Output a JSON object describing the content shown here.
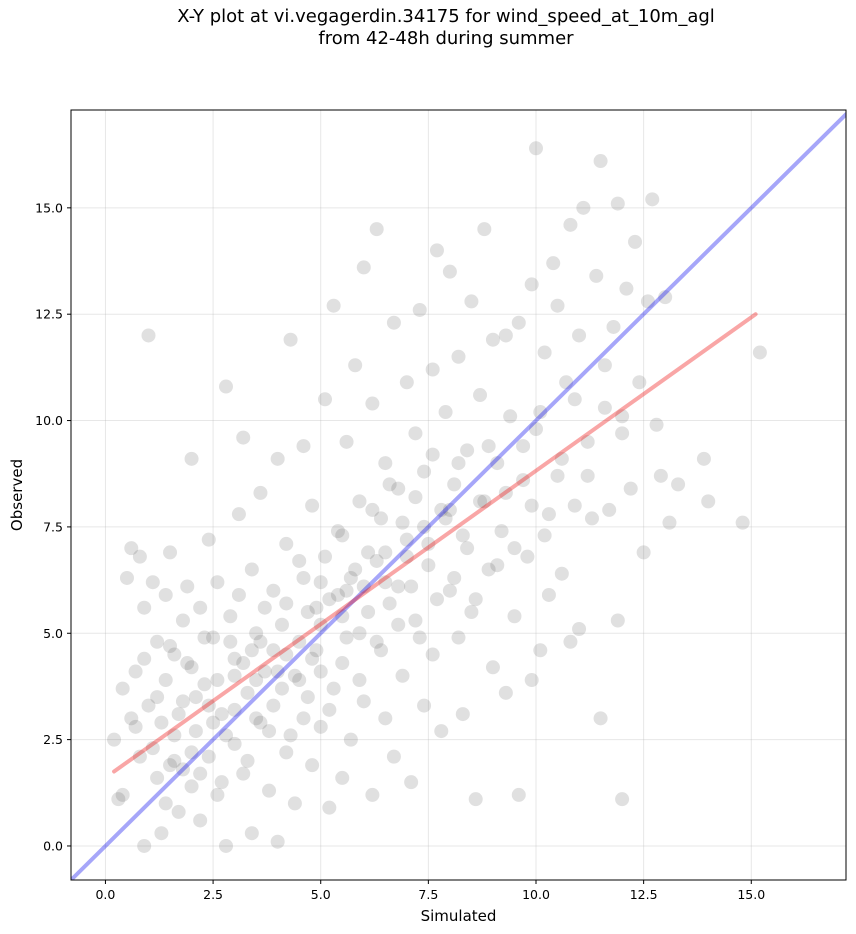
{
  "chart_data": {
    "type": "scatter",
    "title_lines": [
      "X-Y plot at vi.vegagerdin.34175 for wind_speed_at_10m_agl",
      "from 42-48h during summer"
    ],
    "xlabel": "Simulated",
    "ylabel": "Observed",
    "xlim": [
      -0.8,
      17.2
    ],
    "ylim": [
      -0.8,
      17.3
    ],
    "x_ticks": [
      0.0,
      2.5,
      5.0,
      7.5,
      10.0,
      12.5,
      15.0
    ],
    "x_tick_labels": [
      "0.0",
      "2.5",
      "5.0",
      "7.5",
      "10.0",
      "12.5",
      "15.0"
    ],
    "y_ticks": [
      0.0,
      2.5,
      5.0,
      7.5,
      10.0,
      12.5,
      15.0
    ],
    "y_tick_labels": [
      "0.0",
      "2.5",
      "5.0",
      "7.5",
      "10.0",
      "12.5",
      "15.0"
    ],
    "grid": true,
    "point_color": "#555555",
    "points": [
      [
        0.2,
        2.5
      ],
      [
        0.3,
        1.1
      ],
      [
        0.4,
        3.7
      ],
      [
        0.5,
        6.3
      ],
      [
        0.6,
        7.0
      ],
      [
        0.7,
        4.1
      ],
      [
        0.8,
        2.1
      ],
      [
        0.8,
        6.8
      ],
      [
        0.9,
        0.0
      ],
      [
        0.9,
        5.6
      ],
      [
        1.0,
        3.3
      ],
      [
        1.0,
        12.0
      ],
      [
        1.1,
        6.2
      ],
      [
        1.2,
        1.6
      ],
      [
        1.2,
        4.8
      ],
      [
        1.3,
        2.9
      ],
      [
        1.3,
        0.3
      ],
      [
        1.4,
        5.9
      ],
      [
        1.4,
        3.9
      ],
      [
        1.5,
        1.9
      ],
      [
        1.5,
        6.9
      ],
      [
        1.6,
        4.5
      ],
      [
        1.6,
        2.6
      ],
      [
        1.7,
        0.8
      ],
      [
        1.8,
        5.3
      ],
      [
        1.8,
        3.4
      ],
      [
        1.9,
        6.1
      ],
      [
        2.0,
        1.4
      ],
      [
        2.0,
        4.2
      ],
      [
        2.0,
        9.1
      ],
      [
        2.1,
        2.7
      ],
      [
        2.2,
        5.6
      ],
      [
        2.2,
        0.6
      ],
      [
        2.3,
        3.8
      ],
      [
        2.4,
        7.2
      ],
      [
        2.4,
        2.1
      ],
      [
        2.5,
        4.9
      ],
      [
        2.6,
        1.2
      ],
      [
        2.6,
        6.2
      ],
      [
        2.7,
        3.1
      ],
      [
        2.8,
        0.0
      ],
      [
        2.8,
        10.8
      ],
      [
        2.9,
        5.4
      ],
      [
        3.0,
        2.4
      ],
      [
        3.0,
        4.4
      ],
      [
        3.1,
        7.8
      ],
      [
        3.2,
        1.7
      ],
      [
        3.2,
        9.6
      ],
      [
        3.3,
        3.6
      ],
      [
        3.4,
        6.5
      ],
      [
        3.4,
        0.3
      ],
      [
        3.5,
        5.0
      ],
      [
        3.6,
        2.9
      ],
      [
        3.6,
        8.3
      ],
      [
        3.7,
        4.1
      ],
      [
        3.8,
        1.3
      ],
      [
        3.9,
        6.0
      ],
      [
        3.9,
        3.3
      ],
      [
        4.0,
        9.1
      ],
      [
        4.0,
        0.1
      ],
      [
        4.1,
        5.2
      ],
      [
        4.2,
        2.2
      ],
      [
        4.2,
        7.1
      ],
      [
        4.3,
        11.9
      ],
      [
        4.4,
        4.0
      ],
      [
        4.4,
        1.0
      ],
      [
        4.5,
        6.7
      ],
      [
        4.6,
        3.0
      ],
      [
        4.6,
        9.4
      ],
      [
        4.7,
        5.5
      ],
      [
        4.8,
        1.9
      ],
      [
        4.8,
        8.0
      ],
      [
        4.9,
        4.6
      ],
      [
        5.0,
        6.2
      ],
      [
        5.0,
        2.8
      ],
      [
        5.1,
        10.5
      ],
      [
        5.2,
        0.9
      ],
      [
        5.2,
        5.8
      ],
      [
        5.3,
        3.7
      ],
      [
        5.3,
        12.7
      ],
      [
        5.4,
        7.4
      ],
      [
        5.5,
        4.3
      ],
      [
        5.5,
        1.6
      ],
      [
        5.6,
        9.5
      ],
      [
        5.7,
        6.3
      ],
      [
        5.7,
        2.5
      ],
      [
        5.8,
        11.3
      ],
      [
        5.9,
        5.0
      ],
      [
        5.9,
        8.1
      ],
      [
        6.0,
        3.4
      ],
      [
        6.0,
        13.6
      ],
      [
        6.1,
        6.9
      ],
      [
        6.2,
        1.2
      ],
      [
        6.2,
        10.4
      ],
      [
        6.3,
        4.8
      ],
      [
        6.3,
        14.5
      ],
      [
        6.4,
        7.7
      ],
      [
        6.5,
        3.0
      ],
      [
        6.5,
        9.0
      ],
      [
        6.6,
        5.7
      ],
      [
        6.7,
        12.3
      ],
      [
        6.7,
        2.1
      ],
      [
        6.8,
        8.4
      ],
      [
        6.8,
        6.1
      ],
      [
        6.9,
        4.0
      ],
      [
        7.0,
        10.9
      ],
      [
        7.0,
        7.2
      ],
      [
        7.1,
        1.5
      ],
      [
        7.2,
        9.7
      ],
      [
        7.2,
        5.3
      ],
      [
        7.3,
        12.6
      ],
      [
        7.4,
        3.3
      ],
      [
        7.4,
        8.8
      ],
      [
        7.5,
        6.6
      ],
      [
        7.6,
        11.2
      ],
      [
        7.6,
        4.5
      ],
      [
        7.7,
        14.0
      ],
      [
        7.8,
        7.9
      ],
      [
        7.8,
        2.7
      ],
      [
        7.9,
        10.2
      ],
      [
        8.0,
        6.0
      ],
      [
        8.0,
        13.5
      ],
      [
        8.1,
        8.5
      ],
      [
        8.2,
        4.9
      ],
      [
        8.2,
        11.5
      ],
      [
        8.3,
        3.1
      ],
      [
        8.4,
        9.3
      ],
      [
        8.4,
        7.0
      ],
      [
        8.5,
        12.8
      ],
      [
        8.6,
        5.8
      ],
      [
        8.6,
        1.1
      ],
      [
        8.7,
        10.6
      ],
      [
        8.8,
        8.1
      ],
      [
        8.8,
        14.5
      ],
      [
        8.9,
        6.5
      ],
      [
        9.0,
        11.9
      ],
      [
        9.0,
        4.2
      ],
      [
        9.1,
        9.0
      ],
      [
        9.2,
        7.4
      ],
      [
        9.3,
        12.0
      ],
      [
        9.3,
        3.6
      ],
      [
        9.4,
        10.1
      ],
      [
        9.5,
        5.4
      ],
      [
        9.6,
        12.3
      ],
      [
        9.6,
        1.2
      ],
      [
        9.7,
        8.6
      ],
      [
        9.8,
        6.8
      ],
      [
        9.9,
        13.2
      ],
      [
        9.9,
        3.9
      ],
      [
        10.0,
        16.4
      ],
      [
        10.0,
        9.8
      ],
      [
        10.1,
        4.6
      ],
      [
        10.2,
        11.6
      ],
      [
        10.2,
        7.3
      ],
      [
        10.3,
        5.9
      ],
      [
        10.4,
        13.7
      ],
      [
        10.5,
        8.7
      ],
      [
        10.5,
        12.7
      ],
      [
        10.6,
        6.4
      ],
      [
        10.7,
        10.9
      ],
      [
        10.8,
        4.8
      ],
      [
        10.8,
        14.6
      ],
      [
        10.9,
        8.0
      ],
      [
        11.0,
        12.0
      ],
      [
        11.0,
        5.1
      ],
      [
        11.1,
        15.0
      ],
      [
        11.2,
        9.5
      ],
      [
        11.3,
        7.7
      ],
      [
        11.4,
        13.4
      ],
      [
        11.5,
        3.0
      ],
      [
        11.5,
        16.1
      ],
      [
        11.6,
        10.3
      ],
      [
        11.7,
        7.9
      ],
      [
        11.8,
        12.2
      ],
      [
        11.9,
        5.3
      ],
      [
        11.9,
        15.1
      ],
      [
        12.0,
        9.7
      ],
      [
        12.0,
        1.1
      ],
      [
        12.1,
        13.1
      ],
      [
        12.2,
        8.4
      ],
      [
        12.3,
        14.2
      ],
      [
        12.4,
        10.9
      ],
      [
        12.5,
        6.9
      ],
      [
        12.6,
        12.8
      ],
      [
        12.7,
        15.2
      ],
      [
        12.8,
        9.9
      ],
      [
        12.9,
        8.7
      ],
      [
        13.0,
        12.9
      ],
      [
        13.1,
        7.6
      ],
      [
        13.3,
        8.5
      ],
      [
        13.9,
        9.1
      ],
      [
        14.0,
        8.1
      ],
      [
        14.8,
        7.6
      ],
      [
        15.2,
        11.6
      ],
      [
        0.4,
        1.2
      ],
      [
        0.6,
        3.0
      ],
      [
        0.7,
        2.8
      ],
      [
        0.9,
        4.4
      ],
      [
        1.1,
        2.3
      ],
      [
        1.2,
        3.5
      ],
      [
        1.4,
        1.0
      ],
      [
        1.5,
        4.7
      ],
      [
        1.7,
        3.1
      ],
      [
        1.8,
        1.8
      ],
      [
        1.9,
        4.3
      ],
      [
        2.1,
        3.5
      ],
      [
        2.2,
        1.7
      ],
      [
        2.3,
        4.9
      ],
      [
        2.5,
        2.9
      ],
      [
        2.6,
        3.9
      ],
      [
        2.7,
        1.5
      ],
      [
        2.9,
        4.8
      ],
      [
        3.0,
        3.2
      ],
      [
        3.1,
        5.9
      ],
      [
        3.3,
        2.0
      ],
      [
        3.4,
        4.6
      ],
      [
        3.5,
        3.9
      ],
      [
        3.7,
        5.6
      ],
      [
        3.8,
        2.7
      ],
      [
        3.9,
        4.6
      ],
      [
        4.1,
        3.7
      ],
      [
        4.2,
        5.7
      ],
      [
        4.3,
        2.6
      ],
      [
        4.5,
        4.8
      ],
      [
        4.6,
        6.3
      ],
      [
        4.7,
        3.5
      ],
      [
        4.9,
        5.6
      ],
      [
        5.0,
        4.1
      ],
      [
        5.1,
        6.8
      ],
      [
        5.2,
        3.2
      ],
      [
        5.4,
        5.9
      ],
      [
        5.5,
        7.3
      ],
      [
        5.6,
        4.9
      ],
      [
        5.8,
        6.5
      ],
      [
        5.9,
        3.9
      ],
      [
        6.1,
        5.5
      ],
      [
        6.2,
        7.9
      ],
      [
        6.4,
        4.6
      ],
      [
        6.5,
        6.9
      ],
      [
        6.6,
        8.5
      ],
      [
        6.8,
        5.2
      ],
      [
        6.9,
        7.6
      ],
      [
        7.1,
        6.1
      ],
      [
        7.2,
        8.2
      ],
      [
        7.3,
        4.9
      ],
      [
        7.5,
        7.1
      ],
      [
        7.6,
        9.2
      ],
      [
        7.7,
        5.8
      ],
      [
        7.9,
        7.7
      ],
      [
        8.1,
        6.3
      ],
      [
        8.2,
        9.0
      ],
      [
        8.3,
        7.3
      ],
      [
        8.5,
        5.5
      ],
      [
        8.7,
        8.1
      ],
      [
        8.9,
        9.4
      ],
      [
        9.1,
        6.6
      ],
      [
        9.3,
        8.3
      ],
      [
        9.5,
        7.0
      ],
      [
        9.7,
        9.4
      ],
      [
        9.9,
        8.0
      ],
      [
        10.1,
        10.2
      ],
      [
        10.3,
        7.8
      ],
      [
        10.6,
        9.1
      ],
      [
        10.9,
        10.5
      ],
      [
        11.2,
        8.7
      ],
      [
        11.6,
        11.3
      ],
      [
        12.0,
        10.1
      ],
      [
        2.0,
        2.2
      ],
      [
        3.0,
        4.0
      ],
      [
        4.0,
        4.1
      ],
      [
        5.0,
        5.2
      ],
      [
        6.0,
        6.1
      ],
      [
        3.5,
        3.0
      ],
      [
        4.5,
        3.9
      ],
      [
        5.5,
        5.4
      ],
      [
        6.5,
        6.2
      ],
      [
        7.0,
        6.8
      ],
      [
        2.4,
        3.3
      ],
      [
        1.6,
        2.0
      ],
      [
        2.8,
        2.6
      ],
      [
        3.2,
        4.3
      ],
      [
        4.8,
        4.4
      ],
      [
        5.6,
        6.0
      ],
      [
        6.3,
        6.7
      ],
      [
        7.4,
        7.5
      ],
      [
        8.0,
        7.9
      ],
      [
        4.2,
        4.5
      ],
      [
        3.6,
        4.8
      ]
    ],
    "lines": [
      {
        "name": "",
        "color": "#0000ee",
        "alpha": 0.35,
        "x": [
          -0.8,
          17.2
        ],
        "y": [
          -0.8,
          17.2
        ]
      },
      {
        "name": "",
        "color": "#ee0000",
        "alpha": 0.35,
        "x": [
          0.2,
          15.1
        ],
        "y": [
          1.75,
          12.5
        ]
      }
    ]
  }
}
